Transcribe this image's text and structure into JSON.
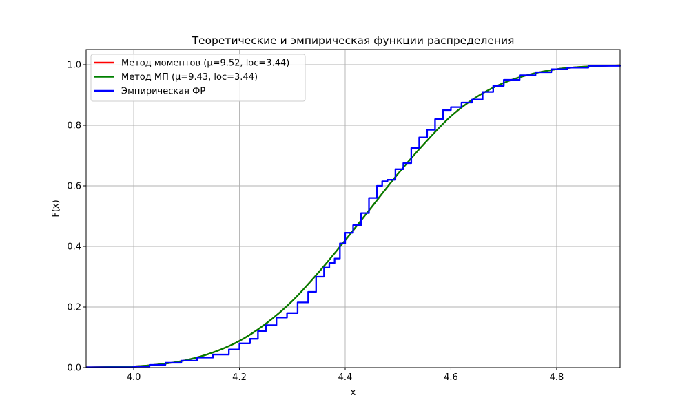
{
  "chart_data": {
    "type": "line",
    "title": "Теоретические и эмпирическая функции распределения",
    "xlabel": "x",
    "ylabel": "F(x)",
    "xlim": [
      3.91,
      4.92
    ],
    "ylim": [
      0.0,
      1.05
    ],
    "xticks": [
      4.0,
      4.2,
      4.4,
      4.6,
      4.8
    ],
    "xtick_labels": [
      "4.0",
      "4.2",
      "4.4",
      "4.6",
      "4.8"
    ],
    "yticks": [
      0.0,
      0.2,
      0.4,
      0.6,
      0.8,
      1.0
    ],
    "ytick_labels": [
      "0.0",
      "0.2",
      "0.4",
      "0.6",
      "0.8",
      "1.0"
    ],
    "grid": true,
    "legend_position": "top-left",
    "series": [
      {
        "name": "Метод моментов (μ=9.52, loc=3.44)",
        "color": "#ff0000",
        "style": "line",
        "x": [
          3.91,
          4.0,
          4.05,
          4.1,
          4.15,
          4.2,
          4.25,
          4.3,
          4.35,
          4.4,
          4.45,
          4.5,
          4.55,
          4.6,
          4.65,
          4.7,
          4.75,
          4.8,
          4.85,
          4.92
        ],
        "y": [
          0.001,
          0.004,
          0.011,
          0.025,
          0.05,
          0.088,
          0.145,
          0.22,
          0.315,
          0.42,
          0.53,
          0.64,
          0.74,
          0.83,
          0.895,
          0.94,
          0.968,
          0.985,
          0.993,
          0.998
        ]
      },
      {
        "name": "Метод МП (μ=9.43, loc=3.44)",
        "color": "#008000",
        "style": "line",
        "x": [
          3.91,
          4.0,
          4.05,
          4.1,
          4.15,
          4.2,
          4.25,
          4.3,
          4.35,
          4.4,
          4.45,
          4.5,
          4.55,
          4.6,
          4.65,
          4.7,
          4.75,
          4.8,
          4.85,
          4.92
        ],
        "y": [
          0.001,
          0.004,
          0.011,
          0.025,
          0.05,
          0.088,
          0.145,
          0.22,
          0.315,
          0.42,
          0.53,
          0.64,
          0.74,
          0.83,
          0.895,
          0.94,
          0.968,
          0.985,
          0.993,
          0.998
        ]
      },
      {
        "name": "Эмпирическая ФР",
        "color": "#0000ff",
        "style": "step",
        "x": [
          3.91,
          4.0,
          4.03,
          4.06,
          4.09,
          4.12,
          4.15,
          4.18,
          4.2,
          4.22,
          4.235,
          4.25,
          4.27,
          4.29,
          4.31,
          4.33,
          4.345,
          4.36,
          4.37,
          4.38,
          4.39,
          4.4,
          4.415,
          4.43,
          4.445,
          4.46,
          4.47,
          4.48,
          4.495,
          4.51,
          4.525,
          4.54,
          4.555,
          4.57,
          4.585,
          4.6,
          4.62,
          4.64,
          4.66,
          4.68,
          4.7,
          4.73,
          4.76,
          4.79,
          4.82,
          4.86,
          4.92
        ],
        "y": [
          0.001,
          0.004,
          0.009,
          0.016,
          0.023,
          0.033,
          0.043,
          0.06,
          0.08,
          0.095,
          0.12,
          0.14,
          0.165,
          0.18,
          0.215,
          0.25,
          0.3,
          0.33,
          0.345,
          0.36,
          0.41,
          0.445,
          0.47,
          0.51,
          0.56,
          0.6,
          0.615,
          0.62,
          0.655,
          0.675,
          0.725,
          0.76,
          0.785,
          0.82,
          0.85,
          0.86,
          0.875,
          0.885,
          0.91,
          0.93,
          0.95,
          0.965,
          0.975,
          0.985,
          0.99,
          0.996,
          1.0
        ]
      }
    ]
  }
}
